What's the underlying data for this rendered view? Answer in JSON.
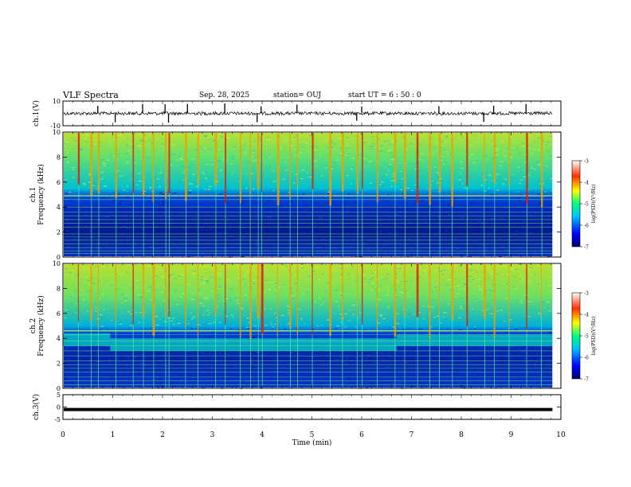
{
  "header": {
    "title": "VLF Spectra",
    "date": "Sep. 28, 2025",
    "station": "station= OUJ",
    "start": "start  UT =   6  : 50 : 0"
  },
  "colors": {
    "spec_low": "#0010a0",
    "spec_mid": "#00d0c0",
    "spec_high": "#ffff00",
    "spec_top": "#c00000",
    "trace": "#000000",
    "tone_line": "#c8ff60"
  },
  "chart_data": [
    {
      "type": "line",
      "name": "ch1-waveform",
      "ylabel": "ch.1(V)",
      "ylim": [
        -10,
        10
      ],
      "yticks": [
        "10",
        "-10"
      ],
      "xlim": [
        0,
        10
      ],
      "baseline": 0,
      "spikes_min": [
        0.7,
        1.05,
        1.6,
        2.05,
        2.12,
        2.5,
        3.25,
        3.9,
        3.98,
        4.7,
        5.9,
        6.0,
        7.55,
        8.45,
        8.65,
        9.3
      ],
      "spike_amplitude": 7
    },
    {
      "type": "heatmap",
      "name": "ch1-spectrogram",
      "ylabel": "ch.1\nFrequency (kHz)",
      "ylim": [
        0,
        10
      ],
      "yticks": [
        "0",
        "2",
        "4",
        "6",
        "8",
        "10"
      ],
      "xlim": [
        0,
        10
      ],
      "data_end_min": 9.83,
      "colorbar": {
        "label": "log(PSD)(V²/Hz)",
        "ticks": [
          "-3",
          "-4",
          "-5",
          "-6",
          "-7"
        ],
        "range": [
          -7,
          -3
        ]
      },
      "band_edge_khz": 4.9,
      "tone_lines_khz": [
        0.3,
        0.5,
        0.75,
        1.05,
        1.35,
        1.6,
        1.85,
        2.4,
        2.7,
        3.0,
        3.3,
        3.6,
        4.0,
        4.6,
        4.9
      ],
      "sferic_times_min": [
        0.3,
        0.55,
        0.7,
        1.05,
        1.4,
        1.6,
        1.8,
        2.05,
        2.12,
        2.45,
        2.7,
        3.05,
        3.25,
        3.55,
        3.75,
        3.9,
        3.98,
        4.3,
        4.55,
        4.7,
        5.0,
        5.35,
        5.6,
        5.9,
        6.0,
        6.3,
        6.65,
        6.85,
        7.1,
        7.35,
        7.55,
        7.8,
        8.1,
        8.45,
        8.65,
        8.95,
        9.3,
        9.6
      ]
    },
    {
      "type": "heatmap",
      "name": "ch2-spectrogram",
      "ylabel": "ch.2\nFrequency (kHz)",
      "ylim": [
        0,
        10
      ],
      "yticks": [
        "0",
        "2",
        "4",
        "6",
        "8",
        "10"
      ],
      "xlim": [
        0,
        10
      ],
      "data_end_min": 9.83,
      "colorbar": {
        "label": "log(PSD)(V²/Hz)",
        "ticks": [
          "-3",
          "-4",
          "-5",
          "-6",
          "-7"
        ],
        "range": [
          -7,
          -3
        ]
      },
      "band_edge_khz": 4.6,
      "band_segments": [
        {
          "t0": 0.0,
          "t1": 0.95,
          "f0": 3.4,
          "f1": 4.4
        },
        {
          "t0": 0.95,
          "t1": 6.7,
          "f0": 3.0,
          "f1": 4.0
        },
        {
          "t0": 6.7,
          "t1": 9.83,
          "f0": 3.4,
          "f1": 4.3
        }
      ],
      "tone_lines_khz": [
        0.3,
        0.6,
        0.9,
        1.3,
        1.6,
        1.9,
        2.2,
        2.6,
        3.0,
        3.4,
        3.8,
        4.3
      ],
      "sferic_times_min": [
        0.3,
        0.55,
        0.7,
        1.05,
        1.4,
        1.6,
        1.8,
        2.05,
        2.12,
        2.45,
        2.7,
        3.05,
        3.25,
        3.55,
        3.75,
        3.9,
        3.98,
        4.3,
        4.55,
        4.7,
        5.0,
        5.35,
        5.6,
        5.9,
        6.0,
        6.3,
        6.65,
        6.85,
        7.1,
        7.35,
        7.55,
        7.8,
        8.1,
        8.45,
        8.65,
        8.95,
        9.3,
        9.6
      ]
    },
    {
      "type": "line",
      "name": "ch3-waveform",
      "ylabel": "ch.3(V)",
      "ylim": [
        -5,
        5
      ],
      "yticks": [
        "5",
        "0",
        "-5"
      ],
      "xlim": [
        0,
        10
      ],
      "level": -1.0,
      "xlabel": "Time (min)",
      "xticks": [
        "0",
        "1",
        "2",
        "3",
        "4",
        "5",
        "6",
        "7",
        "8",
        "9",
        "10"
      ]
    }
  ]
}
